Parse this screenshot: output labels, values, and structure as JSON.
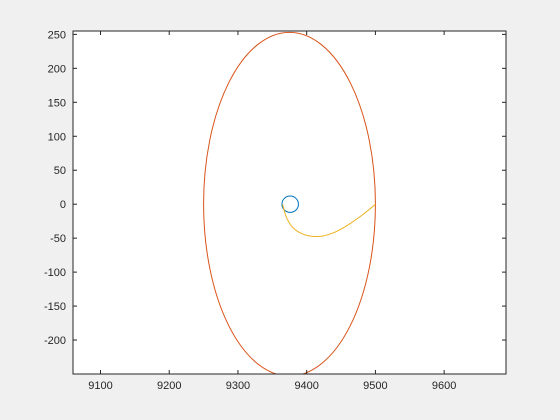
{
  "chart_data": {
    "type": "line",
    "title": "",
    "xlabel": "",
    "ylabel": "",
    "xlim": [
      9060,
      9690
    ],
    "ylim": [
      -250,
      255
    ],
    "grid": false,
    "box": true,
    "x_ticks": [
      9100,
      9200,
      9300,
      9400,
      9500,
      9600
    ],
    "y_ticks": [
      250,
      200,
      150,
      100,
      50,
      0,
      -50,
      -100,
      -150,
      -200
    ],
    "x_tick_labels": [
      "9100",
      "9200",
      "9300",
      "9400",
      "9500",
      "9600"
    ],
    "y_tick_labels": [
      "250",
      "200",
      "150",
      "100",
      "50",
      "0",
      "-50",
      "-100",
      "-150",
      "-200"
    ],
    "series": [
      {
        "color": "#d95319",
        "shape": "ellipse",
        "center": [
          9375,
          0
        ],
        "radius_x": 125,
        "radius_y": 253
      },
      {
        "color": "#0072bd",
        "shape": "ellipse",
        "center": [
          9376,
          0
        ],
        "radius_x": 12,
        "radius_y": 12
      },
      {
        "color": "#edb120",
        "shape": "curve",
        "x": [
          9365,
          9370,
          9380,
          9395,
          9410,
          9425,
          9440,
          9455,
          9470,
          9485,
          9500
        ],
        "y": [
          0,
          -20,
          -36,
          -45,
          -48,
          -47,
          -42,
          -34,
          -24,
          -13,
          0
        ]
      }
    ]
  }
}
